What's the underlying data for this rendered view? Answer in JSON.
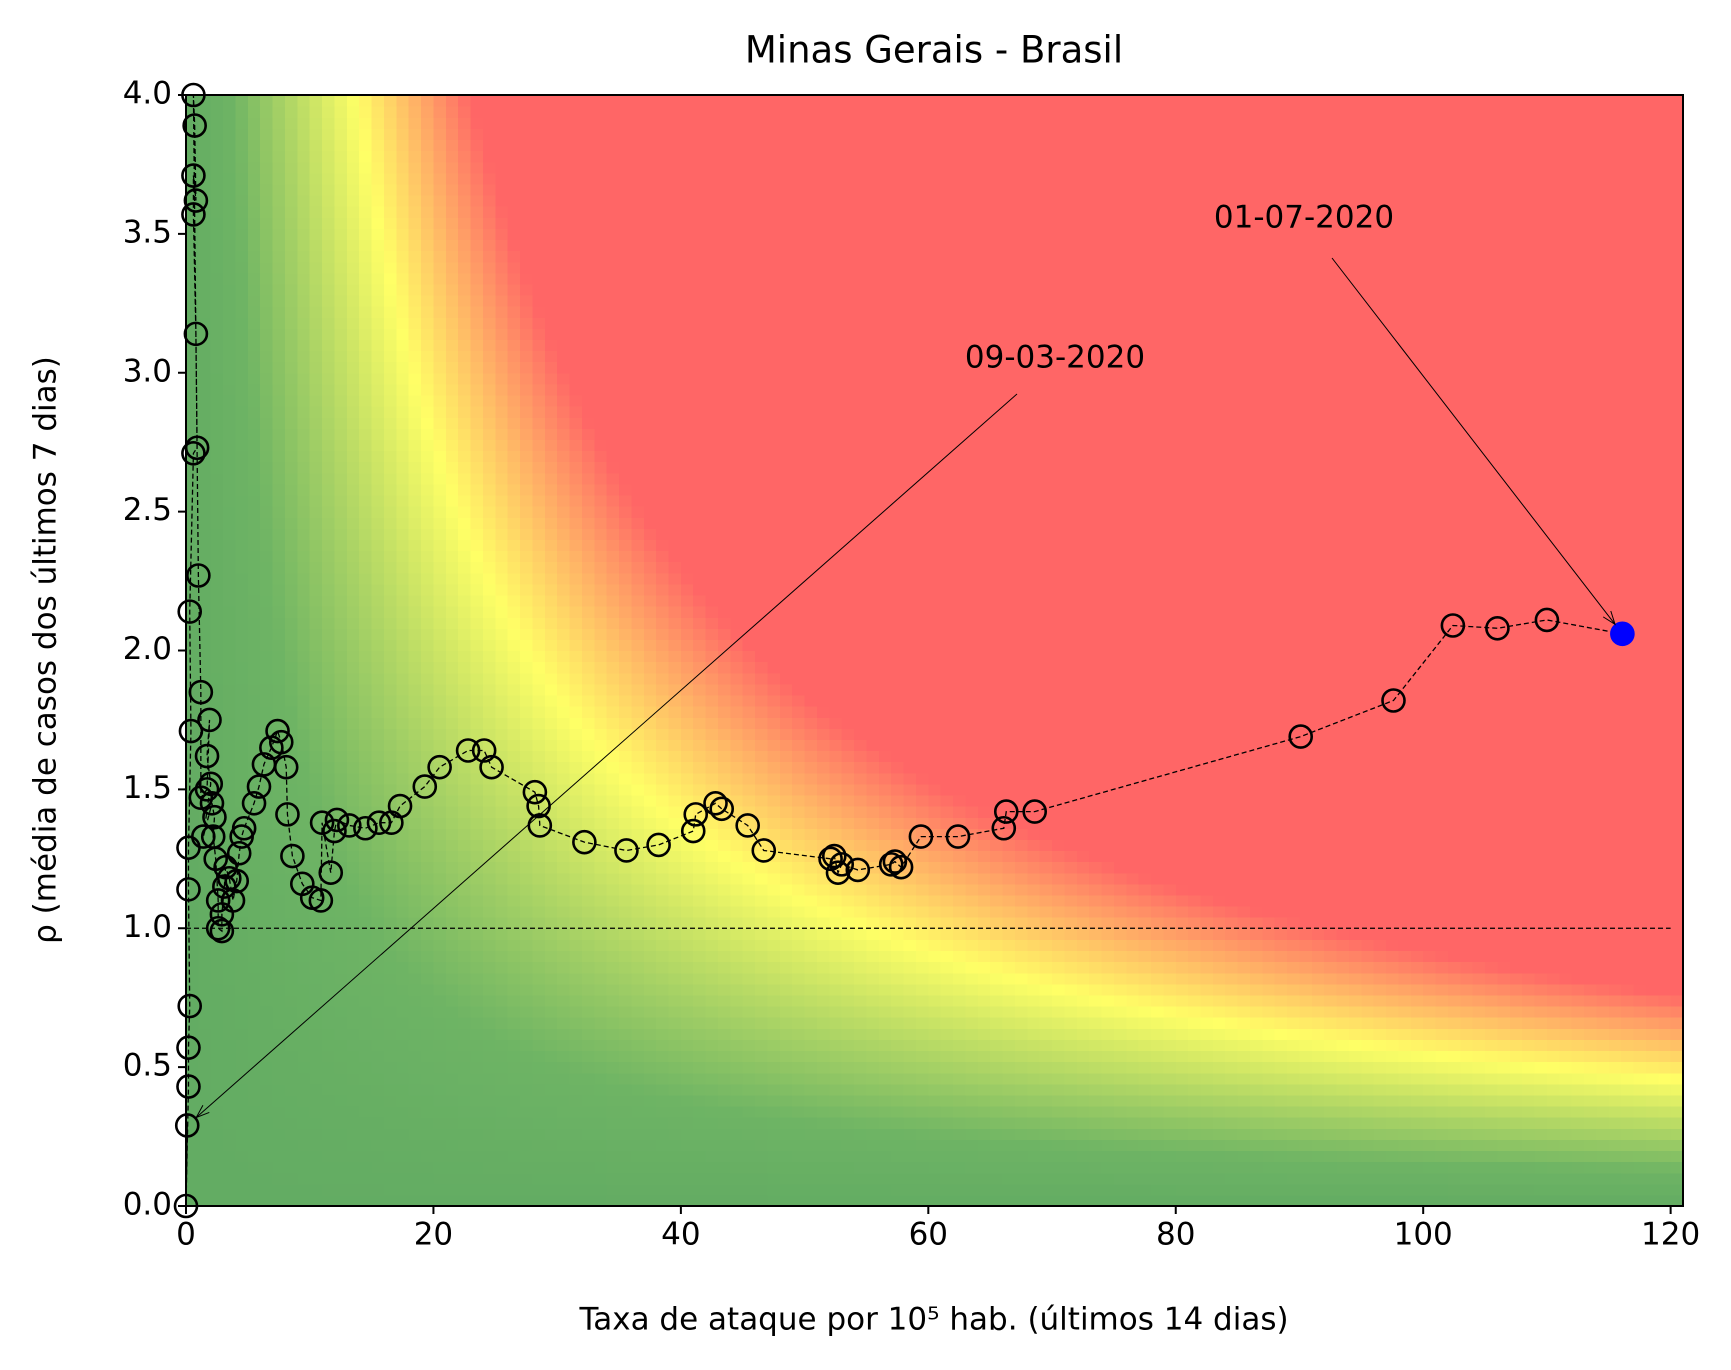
{
  "chart_data": {
    "type": "risk-scatter",
    "title": "Minas Gerais - Brasil",
    "x_label": "Taxa de ataque por 10⁵ hab. (últimos 14 dias)",
    "y_label": "ρ (média de casos dos últimos 7 dias)",
    "xlim": [
      0,
      121
    ],
    "ylim": [
      0,
      4
    ],
    "xticks": [
      0,
      20,
      40,
      60,
      80,
      100,
      120
    ],
    "yticks": [
      {
        "value": 0,
        "label": "0.0"
      },
      0.5,
      {
        "value": 1,
        "label": "1.0"
      },
      1.5,
      {
        "value": 2,
        "label": "2.0"
      },
      2.5,
      {
        "value": 3,
        "label": "3.0"
      },
      3.5,
      {
        "value": 4,
        "label": "4.0"
      }
    ],
    "reference_line": 1,
    "marker_color": "#000000",
    "last_color": "#0000ff",
    "annotations": [
      {
        "text": "09-03-2020"
      },
      {
        "text": "01-07-2020"
      }
    ],
    "x": [
      0.1,
      0,
      0.2,
      0.2,
      0.3,
      0.2,
      0.2,
      0.4,
      0.3,
      0.6,
      0.9,
      0.8,
      0.6,
      0.6,
      0.8,
      0.7,
      0.6,
      1.0,
      1.2,
      1.2,
      1.7,
      1.9,
      1.7,
      2.0,
      1.4,
      2.1,
      2.3,
      2.2,
      2.4,
      2.6,
      2.6,
      2.9,
      2.9,
      3.1,
      3.2,
      3.5,
      3.8,
      4.1,
      4.3,
      4.5,
      4.7,
      5.5,
      5.9,
      6.3,
      6.9,
      7.4,
      7.7,
      8.1,
      8.2,
      8.6,
      9.4,
      10.2,
      10.9,
      11.0,
      11.7,
      12.0,
      12.2,
      13.2,
      14.5,
      15.6,
      16.6,
      17.3,
      19.3,
      20.5,
      22.8,
      24.1,
      24.7,
      28.2,
      28.5,
      28.6,
      32.2,
      35.6,
      38.2,
      41.0,
      41.2,
      42.8,
      43.3,
      45.4,
      46.7,
      52.1,
      52.4,
      52.7,
      53.0,
      54.3,
      57.0,
      57.3,
      57.8,
      59.4,
      62.4,
      66.1,
      66.3,
      68.6,
      90.1,
      97.6,
      102.4,
      106.0,
      110.0,
      116.1
    ],
    "y": [
      0.29,
      0,
      0.43,
      0.57,
      0.72,
      1.14,
      1.29,
      1.71,
      2.14,
      2.71,
      2.73,
      3.14,
      3.57,
      3.71,
      3.62,
      3.89,
      4.0,
      2.27,
      1.85,
      1.47,
      1.5,
      1.75,
      1.62,
      1.52,
      1.33,
      1.45,
      1.4,
      1.33,
      1.25,
      1.1,
      1.0,
      0.99,
      1.05,
      1.15,
      1.22,
      1.18,
      1.1,
      1.17,
      1.27,
      1.33,
      1.36,
      1.45,
      1.51,
      1.59,
      1.65,
      1.71,
      1.67,
      1.58,
      1.41,
      1.26,
      1.16,
      1.11,
      1.1,
      1.38,
      1.2,
      1.35,
      1.39,
      1.37,
      1.36,
      1.38,
      1.38,
      1.44,
      1.51,
      1.58,
      1.64,
      1.64,
      1.58,
      1.49,
      1.44,
      1.37,
      1.31,
      1.28,
      1.3,
      1.35,
      1.41,
      1.45,
      1.43,
      1.37,
      1.28,
      1.25,
      1.26,
      1.2,
      1.23,
      1.21,
      1.23,
      1.24,
      1.22,
      1.33,
      1.33,
      1.36,
      1.42,
      1.42,
      1.69,
      1.82,
      2.09,
      2.08,
      2.11,
      2.06
    ]
  }
}
